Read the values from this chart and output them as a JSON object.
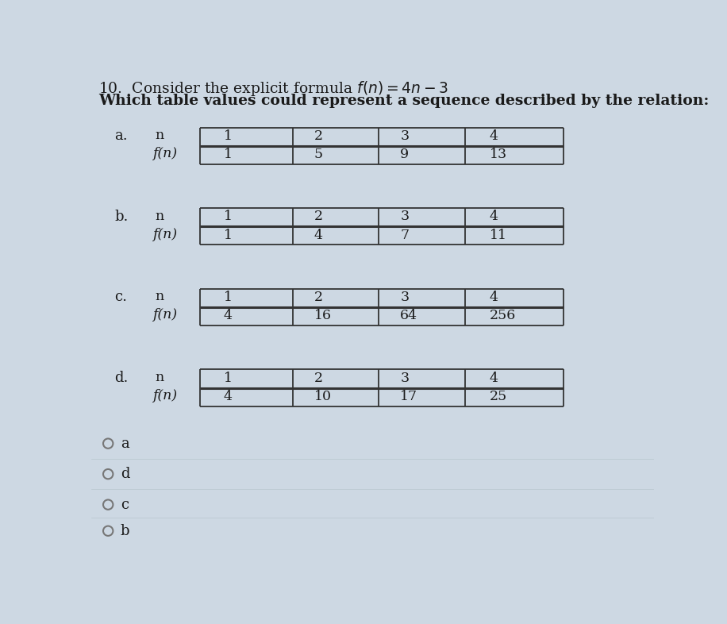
{
  "title_line1": "10.  Consider the explicit formula $f(n) = 4n - 3$",
  "title_line2": "Which table values could represent a sequence described by the relation:",
  "background_color": "#cdd8e3",
  "tables": [
    {
      "label": "a.",
      "n_values": [
        "1",
        "2",
        "3",
        "4"
      ],
      "fn_values": [
        "1",
        "5",
        "9",
        "13"
      ]
    },
    {
      "label": "b.",
      "n_values": [
        "1",
        "2",
        "3",
        "4"
      ],
      "fn_values": [
        "1",
        "4",
        "7",
        "11"
      ]
    },
    {
      "label": "c.",
      "n_values": [
        "1",
        "2",
        "3",
        "4"
      ],
      "fn_values": [
        "4",
        "16",
        "64",
        "256"
      ]
    },
    {
      "label": "d.",
      "n_values": [
        "1",
        "2",
        "3",
        "4"
      ],
      "fn_values": [
        "4",
        "10",
        "17",
        "25"
      ]
    }
  ],
  "choices": [
    "a",
    "d",
    "c",
    "b"
  ],
  "text_color": "#1a1a1a",
  "table_line_color": "#333333",
  "title_fontsize": 13.5,
  "label_fontsize": 13,
  "table_fontsize": 12.5,
  "choice_fontsize": 13
}
